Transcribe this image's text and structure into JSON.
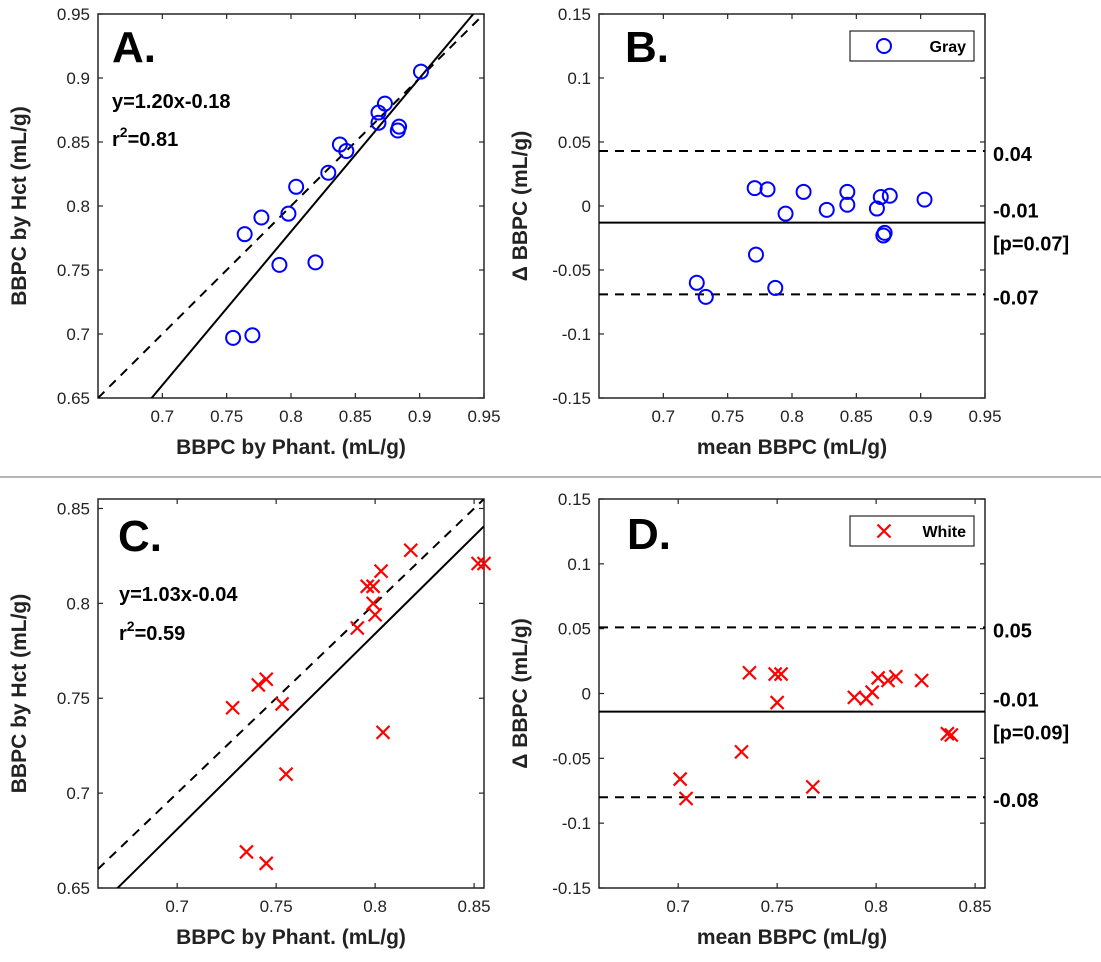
{
  "chart_data": [
    {
      "panel": "A",
      "type": "scatter",
      "title": "A.",
      "xlabel": "BBPC by Phant. (mL/g)",
      "ylabel": "BBPC by Hct (mL/g)",
      "xlim": [
        0.65,
        0.95
      ],
      "ylim": [
        0.65,
        0.95
      ],
      "xticks": [
        0.7,
        0.75,
        0.8,
        0.85,
        0.9,
        0.95
      ],
      "xtick_labels": [
        "0.7",
        "0.75",
        "0.8",
        "0.85",
        "0.9",
        "0.95"
      ],
      "yticks": [
        0.65,
        0.7,
        0.75,
        0.8,
        0.85,
        0.9,
        0.95
      ],
      "ytick_labels": [
        "0.65",
        "0.7",
        "0.75",
        "0.8",
        "0.85",
        "0.9",
        "0.95"
      ],
      "equation": "y=1.20x-0.18",
      "r2_label": "r",
      "r2_sup": "2",
      "r2_value": "=0.81",
      "fit": {
        "slope": 1.2,
        "intercept": -0.18
      },
      "identity_line": true,
      "marker": "circle",
      "color": "#0000ff",
      "points": [
        [
          0.755,
          0.697
        ],
        [
          0.77,
          0.699
        ],
        [
          0.791,
          0.754
        ],
        [
          0.819,
          0.756
        ],
        [
          0.764,
          0.778
        ],
        [
          0.777,
          0.791
        ],
        [
          0.798,
          0.794
        ],
        [
          0.804,
          0.815
        ],
        [
          0.829,
          0.826
        ],
        [
          0.838,
          0.848
        ],
        [
          0.843,
          0.843
        ],
        [
          0.868,
          0.865
        ],
        [
          0.868,
          0.873
        ],
        [
          0.873,
          0.88
        ],
        [
          0.883,
          0.859
        ],
        [
          0.884,
          0.862
        ],
        [
          0.901,
          0.905
        ]
      ]
    },
    {
      "panel": "B",
      "type": "scatter",
      "title": "B.",
      "xlabel": "mean BBPC (mL/g)",
      "ylabel": "Δ BBPC (mL/g)",
      "xlim": [
        0.65,
        0.95
      ],
      "ylim": [
        -0.15,
        0.15
      ],
      "xticks": [
        0.7,
        0.75,
        0.8,
        0.85,
        0.9,
        0.95
      ],
      "xtick_labels": [
        "0.7",
        "0.75",
        "0.8",
        "0.85",
        "0.9",
        "0.95"
      ],
      "yticks": [
        -0.15,
        -0.1,
        -0.05,
        0,
        0.05,
        0.1,
        0.15
      ],
      "ytick_labels": [
        "-0.15",
        "-0.1",
        "-0.05",
        "0",
        "0.05",
        "0.1",
        "0.15"
      ],
      "legend": "Gray",
      "legend_position": "top-right",
      "mean_line": -0.013,
      "upper_loa": 0.043,
      "lower_loa": -0.069,
      "upper_label": "0.04",
      "mean_label": "-0.01",
      "p_label": "[p=0.07]",
      "lower_label": "-0.07",
      "marker": "circle",
      "color": "#0000ff",
      "points": [
        [
          0.726,
          -0.06
        ],
        [
          0.733,
          -0.071
        ],
        [
          0.772,
          -0.038
        ],
        [
          0.787,
          -0.064
        ],
        [
          0.771,
          0.014
        ],
        [
          0.781,
          0.013
        ],
        [
          0.795,
          -0.006
        ],
        [
          0.809,
          0.011
        ],
        [
          0.827,
          -0.003
        ],
        [
          0.843,
          0.011
        ],
        [
          0.843,
          0.001
        ],
        [
          0.866,
          -0.002
        ],
        [
          0.869,
          0.007
        ],
        [
          0.876,
          0.008
        ],
        [
          0.871,
          -0.023
        ],
        [
          0.872,
          -0.021
        ],
        [
          0.903,
          0.005
        ]
      ]
    },
    {
      "panel": "C",
      "type": "scatter",
      "title": "C.",
      "xlabel": "BBPC by Phant. (mL/g)",
      "ylabel": "BBPC by Hct (mL/g)",
      "xlim": [
        0.66,
        0.855
      ],
      "ylim": [
        0.65,
        0.855
      ],
      "xticks": [
        0.7,
        0.75,
        0.8,
        0.85
      ],
      "xtick_labels": [
        "0.7",
        "0.75",
        "0.8",
        "0.85"
      ],
      "yticks": [
        0.65,
        0.7,
        0.75,
        0.8,
        0.85
      ],
      "ytick_labels": [
        "0.65",
        "0.7",
        "0.75",
        "0.8",
        "0.85"
      ],
      "equation": "y=1.03x-0.04",
      "r2_label": "r",
      "r2_sup": "2",
      "r2_value": "=0.59",
      "fit": {
        "slope": 1.03,
        "intercept": -0.04
      },
      "identity_line": true,
      "marker": "x",
      "color": "#ff0000",
      "points": [
        [
          0.728,
          0.745
        ],
        [
          0.741,
          0.757
        ],
        [
          0.745,
          0.76
        ],
        [
          0.753,
          0.747
        ],
        [
          0.755,
          0.71
        ],
        [
          0.735,
          0.669
        ],
        [
          0.745,
          0.663
        ],
        [
          0.791,
          0.787
        ],
        [
          0.796,
          0.809
        ],
        [
          0.799,
          0.809
        ],
        [
          0.799,
          0.8
        ],
        [
          0.8,
          0.794
        ],
        [
          0.803,
          0.817
        ],
        [
          0.818,
          0.828
        ],
        [
          0.804,
          0.732
        ],
        [
          0.852,
          0.821
        ],
        [
          0.855,
          0.821
        ]
      ]
    },
    {
      "panel": "D",
      "type": "scatter",
      "title": "D.",
      "xlabel": "mean BBPC (mL/g)",
      "ylabel": "Δ BBPC (mL/g)",
      "xlim": [
        0.66,
        0.855
      ],
      "ylim": [
        -0.15,
        0.15
      ],
      "xticks": [
        0.7,
        0.75,
        0.8,
        0.85
      ],
      "xtick_labels": [
        "0.7",
        "0.75",
        "0.8",
        "0.85"
      ],
      "yticks": [
        -0.15,
        -0.1,
        -0.05,
        0,
        0.05,
        0.1,
        0.15
      ],
      "ytick_labels": [
        "-0.15",
        "-0.1",
        "-0.05",
        "0",
        "0.05",
        "0.1",
        "0.15"
      ],
      "legend": "White",
      "legend_position": "top-right",
      "mean_line": -0.014,
      "upper_loa": 0.051,
      "lower_loa": -0.08,
      "upper_label": "0.05",
      "mean_label": "-0.01",
      "p_label": "[p=0.09]",
      "lower_label": "-0.08",
      "marker": "x",
      "color": "#ff0000",
      "points": [
        [
          0.701,
          -0.066
        ],
        [
          0.704,
          -0.081
        ],
        [
          0.732,
          -0.045
        ],
        [
          0.736,
          0.016
        ],
        [
          0.749,
          0.015
        ],
        [
          0.752,
          0.015
        ],
        [
          0.75,
          -0.007
        ],
        [
          0.768,
          -0.072
        ],
        [
          0.789,
          -0.003
        ],
        [
          0.795,
          -0.004
        ],
        [
          0.798,
          0.001
        ],
        [
          0.801,
          0.012
        ],
        [
          0.806,
          0.01
        ],
        [
          0.81,
          0.013
        ],
        [
          0.823,
          0.01
        ],
        [
          0.836,
          -0.031
        ],
        [
          0.838,
          -0.032
        ]
      ]
    }
  ]
}
